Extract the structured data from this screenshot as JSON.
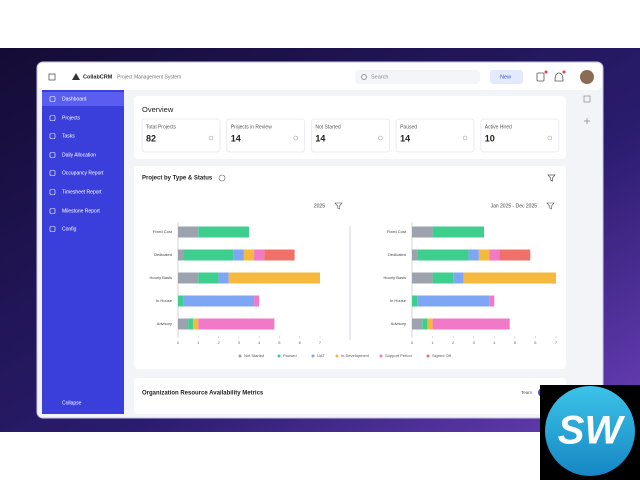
{
  "header": {
    "app_name": "CollabCRM",
    "subtitle": "Project Management System",
    "search": "Search",
    "new_button": "New"
  },
  "sidebar": {
    "items": [
      "Dashboard",
      "Projects",
      "Tasks",
      "Daily Allocation",
      "Occupancy Report",
      "Timesheet Report",
      "Milestone Report",
      "Config"
    ],
    "collapse": "Collapse"
  },
  "overview": {
    "title": "Overview",
    "cards": [
      {
        "label": "Total Projects",
        "value": 82
      },
      {
        "label": "Projects in Review",
        "value": 14
      },
      {
        "label": "Not Started",
        "value": 14
      },
      {
        "label": "Paused",
        "value": 14
      },
      {
        "label": "Active Hired",
        "value": 10
      }
    ]
  },
  "project_section": {
    "title": "Project by Type & Status",
    "legend": [
      {
        "name": "Not Started",
        "color": "#9ca3af"
      },
      {
        "name": "Paused",
        "color": "#3ecf8e"
      },
      {
        "name": "UAT",
        "color": "#7fa6f4"
      },
      {
        "name": "In Development",
        "color": "#f6b93b"
      },
      {
        "name": "Support Period",
        "color": "#f07ac8"
      },
      {
        "name": "Signed Off",
        "color": "#f07167"
      }
    ],
    "charts": [
      {
        "type": "bar",
        "filter": "2025",
        "categories": [
          "Fixed Cost",
          "Dedicated",
          "Hourly Basis",
          "In House",
          "Advisory"
        ],
        "values": [
          [
            1,
            0.25,
            1,
            0,
            0.5
          ],
          [
            2.5,
            2.5,
            1,
            0.25,
            0.25
          ],
          [
            0,
            0.5,
            0.5,
            3.5,
            0
          ],
          [
            0,
            0.5,
            4.5,
            0,
            0.25
          ],
          [
            0,
            0.5,
            0,
            0.25,
            3.75
          ],
          [
            0,
            1.5,
            0,
            0,
            0
          ]
        ],
        "xlim": [
          0,
          7
        ],
        "xticks": [
          0,
          1,
          2,
          3,
          4,
          5,
          6,
          7
        ]
      },
      {
        "type": "bar",
        "filter": "Jan 2025 - Dec 2025",
        "categories": [
          "Fixed Cost",
          "Dedicated",
          "Hourly Basis",
          "In House",
          "Advisory"
        ],
        "values": [
          [
            1,
            0.25,
            1,
            0,
            0.5
          ],
          [
            2.5,
            2.5,
            1,
            0.25,
            0.25
          ],
          [
            0,
            0.5,
            0.5,
            3.5,
            0
          ],
          [
            0,
            0.5,
            4.5,
            0,
            0.25
          ],
          [
            0,
            0.5,
            0,
            0.25,
            3.75
          ],
          [
            0,
            1.5,
            0,
            0,
            0
          ]
        ],
        "xlim": [
          0,
          7
        ],
        "xticks": [
          0,
          1,
          2,
          3,
          4,
          5,
          6,
          7
        ]
      }
    ]
  },
  "resource_section": {
    "title": "Organization Resource Availability Metrics",
    "toggle": [
      "Team",
      "Org"
    ]
  },
  "watermark": "SW"
}
